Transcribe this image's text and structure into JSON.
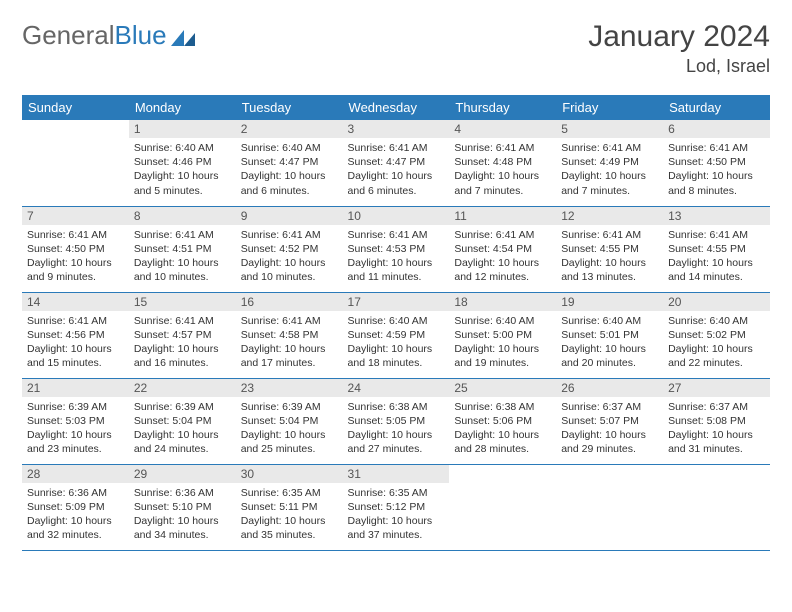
{
  "logo": {
    "word1": "General",
    "word2": "Blue"
  },
  "title": "January 2024",
  "location": "Lod, Israel",
  "colors": {
    "header_bg": "#2a7ab9",
    "header_text": "#ffffff",
    "daynum_bg": "#e9e9e9",
    "daynum_text": "#555555",
    "cell_text": "#333333",
    "row_divider": "#2a7ab9",
    "page_bg": "#ffffff",
    "logo_gray": "#666666",
    "logo_blue": "#2a7ab9"
  },
  "weekdays": [
    "Sunday",
    "Monday",
    "Tuesday",
    "Wednesday",
    "Thursday",
    "Friday",
    "Saturday"
  ],
  "weeks": [
    [
      {
        "empty": true
      },
      {
        "day": "1",
        "l1": "Sunrise: 6:40 AM",
        "l2": "Sunset: 4:46 PM",
        "l3": "Daylight: 10 hours",
        "l4": "and 5 minutes."
      },
      {
        "day": "2",
        "l1": "Sunrise: 6:40 AM",
        "l2": "Sunset: 4:47 PM",
        "l3": "Daylight: 10 hours",
        "l4": "and 6 minutes."
      },
      {
        "day": "3",
        "l1": "Sunrise: 6:41 AM",
        "l2": "Sunset: 4:47 PM",
        "l3": "Daylight: 10 hours",
        "l4": "and 6 minutes."
      },
      {
        "day": "4",
        "l1": "Sunrise: 6:41 AM",
        "l2": "Sunset: 4:48 PM",
        "l3": "Daylight: 10 hours",
        "l4": "and 7 minutes."
      },
      {
        "day": "5",
        "l1": "Sunrise: 6:41 AM",
        "l2": "Sunset: 4:49 PM",
        "l3": "Daylight: 10 hours",
        "l4": "and 7 minutes."
      },
      {
        "day": "6",
        "l1": "Sunrise: 6:41 AM",
        "l2": "Sunset: 4:50 PM",
        "l3": "Daylight: 10 hours",
        "l4": "and 8 minutes."
      }
    ],
    [
      {
        "day": "7",
        "l1": "Sunrise: 6:41 AM",
        "l2": "Sunset: 4:50 PM",
        "l3": "Daylight: 10 hours",
        "l4": "and 9 minutes."
      },
      {
        "day": "8",
        "l1": "Sunrise: 6:41 AM",
        "l2": "Sunset: 4:51 PM",
        "l3": "Daylight: 10 hours",
        "l4": "and 10 minutes."
      },
      {
        "day": "9",
        "l1": "Sunrise: 6:41 AM",
        "l2": "Sunset: 4:52 PM",
        "l3": "Daylight: 10 hours",
        "l4": "and 10 minutes."
      },
      {
        "day": "10",
        "l1": "Sunrise: 6:41 AM",
        "l2": "Sunset: 4:53 PM",
        "l3": "Daylight: 10 hours",
        "l4": "and 11 minutes."
      },
      {
        "day": "11",
        "l1": "Sunrise: 6:41 AM",
        "l2": "Sunset: 4:54 PM",
        "l3": "Daylight: 10 hours",
        "l4": "and 12 minutes."
      },
      {
        "day": "12",
        "l1": "Sunrise: 6:41 AM",
        "l2": "Sunset: 4:55 PM",
        "l3": "Daylight: 10 hours",
        "l4": "and 13 minutes."
      },
      {
        "day": "13",
        "l1": "Sunrise: 6:41 AM",
        "l2": "Sunset: 4:55 PM",
        "l3": "Daylight: 10 hours",
        "l4": "and 14 minutes."
      }
    ],
    [
      {
        "day": "14",
        "l1": "Sunrise: 6:41 AM",
        "l2": "Sunset: 4:56 PM",
        "l3": "Daylight: 10 hours",
        "l4": "and 15 minutes."
      },
      {
        "day": "15",
        "l1": "Sunrise: 6:41 AM",
        "l2": "Sunset: 4:57 PM",
        "l3": "Daylight: 10 hours",
        "l4": "and 16 minutes."
      },
      {
        "day": "16",
        "l1": "Sunrise: 6:41 AM",
        "l2": "Sunset: 4:58 PM",
        "l3": "Daylight: 10 hours",
        "l4": "and 17 minutes."
      },
      {
        "day": "17",
        "l1": "Sunrise: 6:40 AM",
        "l2": "Sunset: 4:59 PM",
        "l3": "Daylight: 10 hours",
        "l4": "and 18 minutes."
      },
      {
        "day": "18",
        "l1": "Sunrise: 6:40 AM",
        "l2": "Sunset: 5:00 PM",
        "l3": "Daylight: 10 hours",
        "l4": "and 19 minutes."
      },
      {
        "day": "19",
        "l1": "Sunrise: 6:40 AM",
        "l2": "Sunset: 5:01 PM",
        "l3": "Daylight: 10 hours",
        "l4": "and 20 minutes."
      },
      {
        "day": "20",
        "l1": "Sunrise: 6:40 AM",
        "l2": "Sunset: 5:02 PM",
        "l3": "Daylight: 10 hours",
        "l4": "and 22 minutes."
      }
    ],
    [
      {
        "day": "21",
        "l1": "Sunrise: 6:39 AM",
        "l2": "Sunset: 5:03 PM",
        "l3": "Daylight: 10 hours",
        "l4": "and 23 minutes."
      },
      {
        "day": "22",
        "l1": "Sunrise: 6:39 AM",
        "l2": "Sunset: 5:04 PM",
        "l3": "Daylight: 10 hours",
        "l4": "and 24 minutes."
      },
      {
        "day": "23",
        "l1": "Sunrise: 6:39 AM",
        "l2": "Sunset: 5:04 PM",
        "l3": "Daylight: 10 hours",
        "l4": "and 25 minutes."
      },
      {
        "day": "24",
        "l1": "Sunrise: 6:38 AM",
        "l2": "Sunset: 5:05 PM",
        "l3": "Daylight: 10 hours",
        "l4": "and 27 minutes."
      },
      {
        "day": "25",
        "l1": "Sunrise: 6:38 AM",
        "l2": "Sunset: 5:06 PM",
        "l3": "Daylight: 10 hours",
        "l4": "and 28 minutes."
      },
      {
        "day": "26",
        "l1": "Sunrise: 6:37 AM",
        "l2": "Sunset: 5:07 PM",
        "l3": "Daylight: 10 hours",
        "l4": "and 29 minutes."
      },
      {
        "day": "27",
        "l1": "Sunrise: 6:37 AM",
        "l2": "Sunset: 5:08 PM",
        "l3": "Daylight: 10 hours",
        "l4": "and 31 minutes."
      }
    ],
    [
      {
        "day": "28",
        "l1": "Sunrise: 6:36 AM",
        "l2": "Sunset: 5:09 PM",
        "l3": "Daylight: 10 hours",
        "l4": "and 32 minutes."
      },
      {
        "day": "29",
        "l1": "Sunrise: 6:36 AM",
        "l2": "Sunset: 5:10 PM",
        "l3": "Daylight: 10 hours",
        "l4": "and 34 minutes."
      },
      {
        "day": "30",
        "l1": "Sunrise: 6:35 AM",
        "l2": "Sunset: 5:11 PM",
        "l3": "Daylight: 10 hours",
        "l4": "and 35 minutes."
      },
      {
        "day": "31",
        "l1": "Sunrise: 6:35 AM",
        "l2": "Sunset: 5:12 PM",
        "l3": "Daylight: 10 hours",
        "l4": "and 37 minutes."
      },
      {
        "empty": true
      },
      {
        "empty": true
      },
      {
        "empty": true
      }
    ]
  ]
}
